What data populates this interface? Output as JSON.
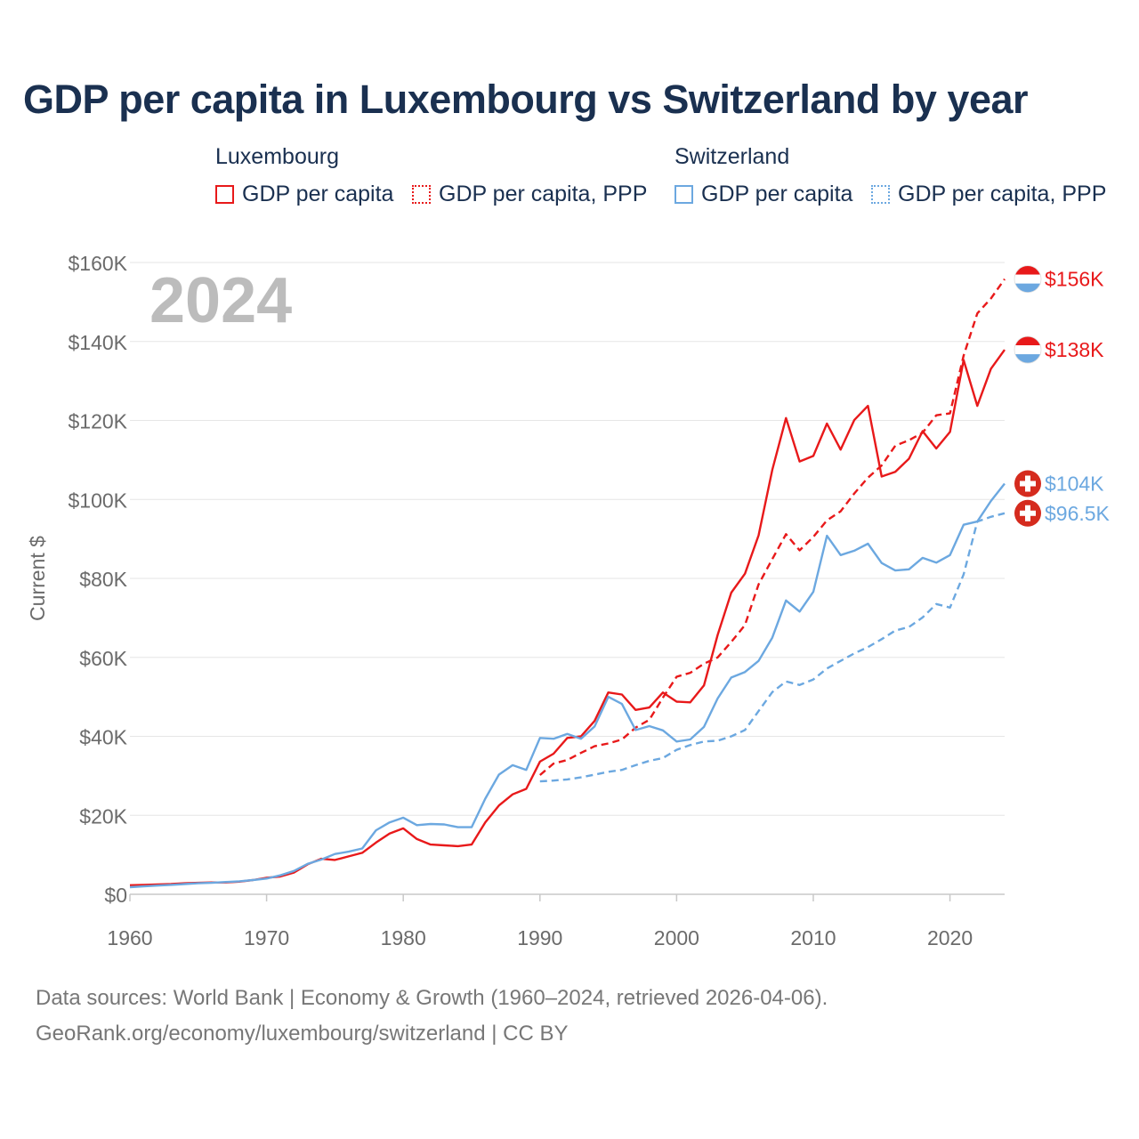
{
  "title": "GDP per capita in Luxembourg vs Switzerland by year",
  "legend": {
    "groups": [
      {
        "country": "Luxembourg",
        "color": "#e8191a",
        "items": [
          {
            "label": "GDP per capita",
            "style": "solid"
          },
          {
            "label": "GDP per capita, PPP",
            "style": "dotted"
          }
        ]
      },
      {
        "country": "Switzerland",
        "color": "#6ca8e0",
        "items": [
          {
            "label": "GDP per capita",
            "style": "solid"
          },
          {
            "label": "GDP per capita, PPP",
            "style": "dotted"
          }
        ]
      }
    ]
  },
  "source": {
    "line1": "Data sources: World Bank | Economy & Growth (1960–2024, retrieved 2026-04-06).",
    "line2": "GeoRank.org/economy/luxembourg/switzerland | CC BY"
  },
  "chart_data": {
    "type": "line",
    "year_label": "2024",
    "ylabel": "Current $",
    "xlim": [
      1960,
      2024
    ],
    "ylim": [
      0,
      160000
    ],
    "x_ticks": [
      1960,
      1970,
      1980,
      1990,
      2000,
      2010,
      2020
    ],
    "y_ticks": [
      {
        "value": 0,
        "label": "$0"
      },
      {
        "value": 20000,
        "label": "$20K"
      },
      {
        "value": 40000,
        "label": "$40K"
      },
      {
        "value": 60000,
        "label": "$60K"
      },
      {
        "value": 80000,
        "label": "$80K"
      },
      {
        "value": 100000,
        "label": "$100K"
      },
      {
        "value": 120000,
        "label": "$120K"
      },
      {
        "value": 140000,
        "label": "$140K"
      },
      {
        "value": 160000,
        "label": "$160K"
      }
    ],
    "series": [
      {
        "name": "Luxembourg GDP per capita",
        "country": "Luxembourg",
        "color": "#e8191a",
        "dashed": false,
        "flag": "luxembourg",
        "end_label": "$138K",
        "start_year": 1960,
        "values": [
          2300,
          2400,
          2500,
          2600,
          2800,
          2900,
          3000,
          3000,
          3200,
          3600,
          4200,
          4500,
          5500,
          7600,
          9000,
          8700,
          9600,
          10500,
          13100,
          15400,
          16700,
          14000,
          12600,
          12400,
          12200,
          12600,
          18200,
          22500,
          25300,
          26700,
          33600,
          35600,
          39600,
          40000,
          43900,
          51100,
          50600,
          46700,
          47300,
          51100,
          48800,
          48600,
          52900,
          65700,
          76400,
          81200,
          90900,
          107500,
          120600,
          109600,
          111000,
          119200,
          112600,
          120100,
          123700,
          105800,
          107000,
          110300,
          117300,
          112900,
          117100,
          135300,
          123700,
          133100,
          137900
        ]
      },
      {
        "name": "Luxembourg GDP per capita, PPP",
        "country": "Luxembourg",
        "color": "#e8191a",
        "dashed": true,
        "flag": "luxembourg",
        "end_label": "$156K",
        "start_year": 1990,
        "values": [
          30200,
          33100,
          34000,
          35800,
          37500,
          38200,
          39200,
          42200,
          44200,
          49800,
          55100,
          56100,
          58400,
          60000,
          63900,
          68200,
          78500,
          84900,
          91200,
          87100,
          90500,
          94700,
          97000,
          101500,
          105500,
          108600,
          113600,
          115000,
          116900,
          121300,
          121800,
          136400,
          147100,
          150900,
          155800
        ]
      },
      {
        "name": "Switzerland GDP per capita",
        "country": "Switzerland",
        "color": "#6ca8e0",
        "dashed": false,
        "flag": "switzerland",
        "end_label": "$104K",
        "start_year": 1960,
        "values": [
          1800,
          2000,
          2200,
          2400,
          2600,
          2800,
          2900,
          3100,
          3300,
          3600,
          4000,
          4800,
          5900,
          7700,
          8800,
          10200,
          10800,
          11600,
          16200,
          18200,
          19400,
          17500,
          17800,
          17700,
          17000,
          17000,
          24200,
          30300,
          32700,
          31500,
          39600,
          39400,
          40600,
          39400,
          42500,
          50000,
          48200,
          41600,
          42600,
          41500,
          38700,
          39200,
          42400,
          49600,
          54900,
          56300,
          59100,
          65000,
          74400,
          71600,
          76600,
          90800,
          85900,
          87000,
          88800,
          83900,
          82000,
          82300,
          85200,
          84000,
          85900,
          93600,
          94400,
          99600,
          104000
        ]
      },
      {
        "name": "Switzerland GDP per capita, PPP",
        "country": "Switzerland",
        "color": "#6ca8e0",
        "dashed": true,
        "flag": "switzerland",
        "end_label": "$96.5K",
        "start_year": 1990,
        "values": [
          28600,
          28800,
          29100,
          29600,
          30300,
          31000,
          31500,
          32700,
          33800,
          34500,
          36600,
          37800,
          38700,
          38900,
          40000,
          41600,
          46400,
          51200,
          53900,
          53000,
          54400,
          57200,
          59100,
          61000,
          62600,
          64600,
          66800,
          67700,
          70100,
          73500,
          72600,
          81000,
          94400,
          95600,
          96500
        ]
      }
    ]
  }
}
